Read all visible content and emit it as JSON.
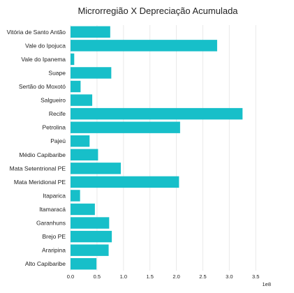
{
  "chart_data": {
    "type": "bar",
    "orientation": "horizontal",
    "title": "Microrregião X Depreciação Acumulada",
    "xlabel": "",
    "ylabel": "",
    "x_scale_label": "1e8",
    "xlim": [
      0,
      3.8
    ],
    "x_ticks": [
      "0.0",
      "0.5",
      "1.0",
      "1.5",
      "2.0",
      "2.5",
      "3.0",
      "3.5"
    ],
    "grid": true,
    "bar_color": "#17bfc9",
    "categories": [
      "Vitória de Santo Antão",
      "Vale do Ipojuca",
      "Vale do Ipanema",
      "Suape",
      "Sertão do Moxotó",
      "Salgueiro",
      "Recife",
      "Petrolina",
      "Pajeú",
      "Médio Capibaribe",
      "Mata Setentrional PE",
      "Mata Meridional PE",
      "Itaparica",
      "Itamaracá",
      "Garanhuns",
      "Brejo PE",
      "Araripina",
      "Alto Capibaribe"
    ],
    "values": [
      0.75,
      2.77,
      0.07,
      0.77,
      0.19,
      0.41,
      3.25,
      2.07,
      0.36,
      0.52,
      0.95,
      2.05,
      0.18,
      0.46,
      0.73,
      0.78,
      0.72,
      0.49
    ]
  }
}
